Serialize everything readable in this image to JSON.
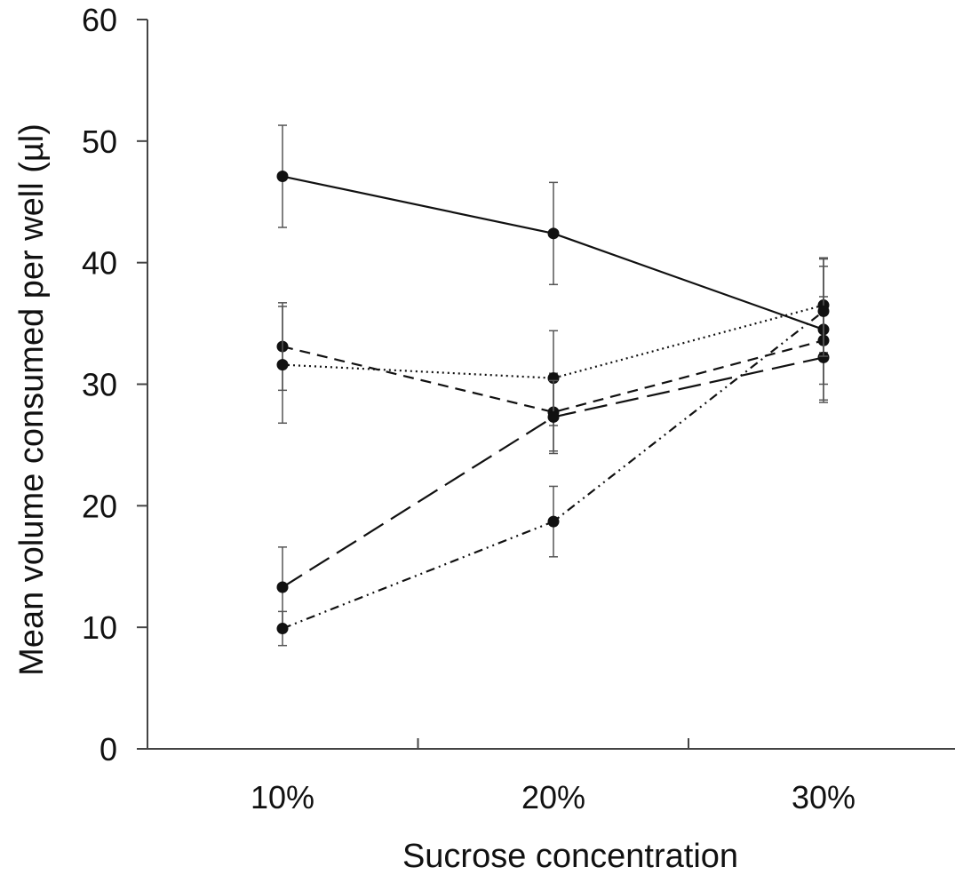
{
  "chart_data": {
    "type": "line",
    "title": "",
    "xlabel": "Sucrose concentration",
    "ylabel": "Mean volume consumed per well (µl)",
    "ylim": [
      0,
      60
    ],
    "yticks": [
      0,
      10,
      20,
      30,
      40,
      50,
      60
    ],
    "categories": [
      "10%",
      "20%",
      "30%"
    ],
    "grid": false,
    "legend": "none",
    "series": [
      {
        "style": "solid",
        "values": [
          47.1,
          42.4,
          34.5
        ],
        "errors": [
          4.2,
          4.2,
          5.8
        ]
      },
      {
        "style": "dashed",
        "values": [
          33.1,
          27.7,
          33.6
        ],
        "errors": [
          3.6,
          3.2,
          3.6
        ]
      },
      {
        "style": "dotted",
        "values": [
          31.6,
          30.5,
          36.5
        ],
        "errors": [
          4.8,
          3.9,
          3.9
        ]
      },
      {
        "style": "long-dash",
        "values": [
          13.3,
          27.3,
          32.2
        ],
        "errors": [
          3.3,
          3.0,
          3.7
        ]
      },
      {
        "style": "dash-dot-dot",
        "values": [
          9.9,
          18.7,
          36.0
        ],
        "errors": [
          1.4,
          2.9,
          3.7
        ]
      }
    ],
    "line_color": "#111111"
  }
}
